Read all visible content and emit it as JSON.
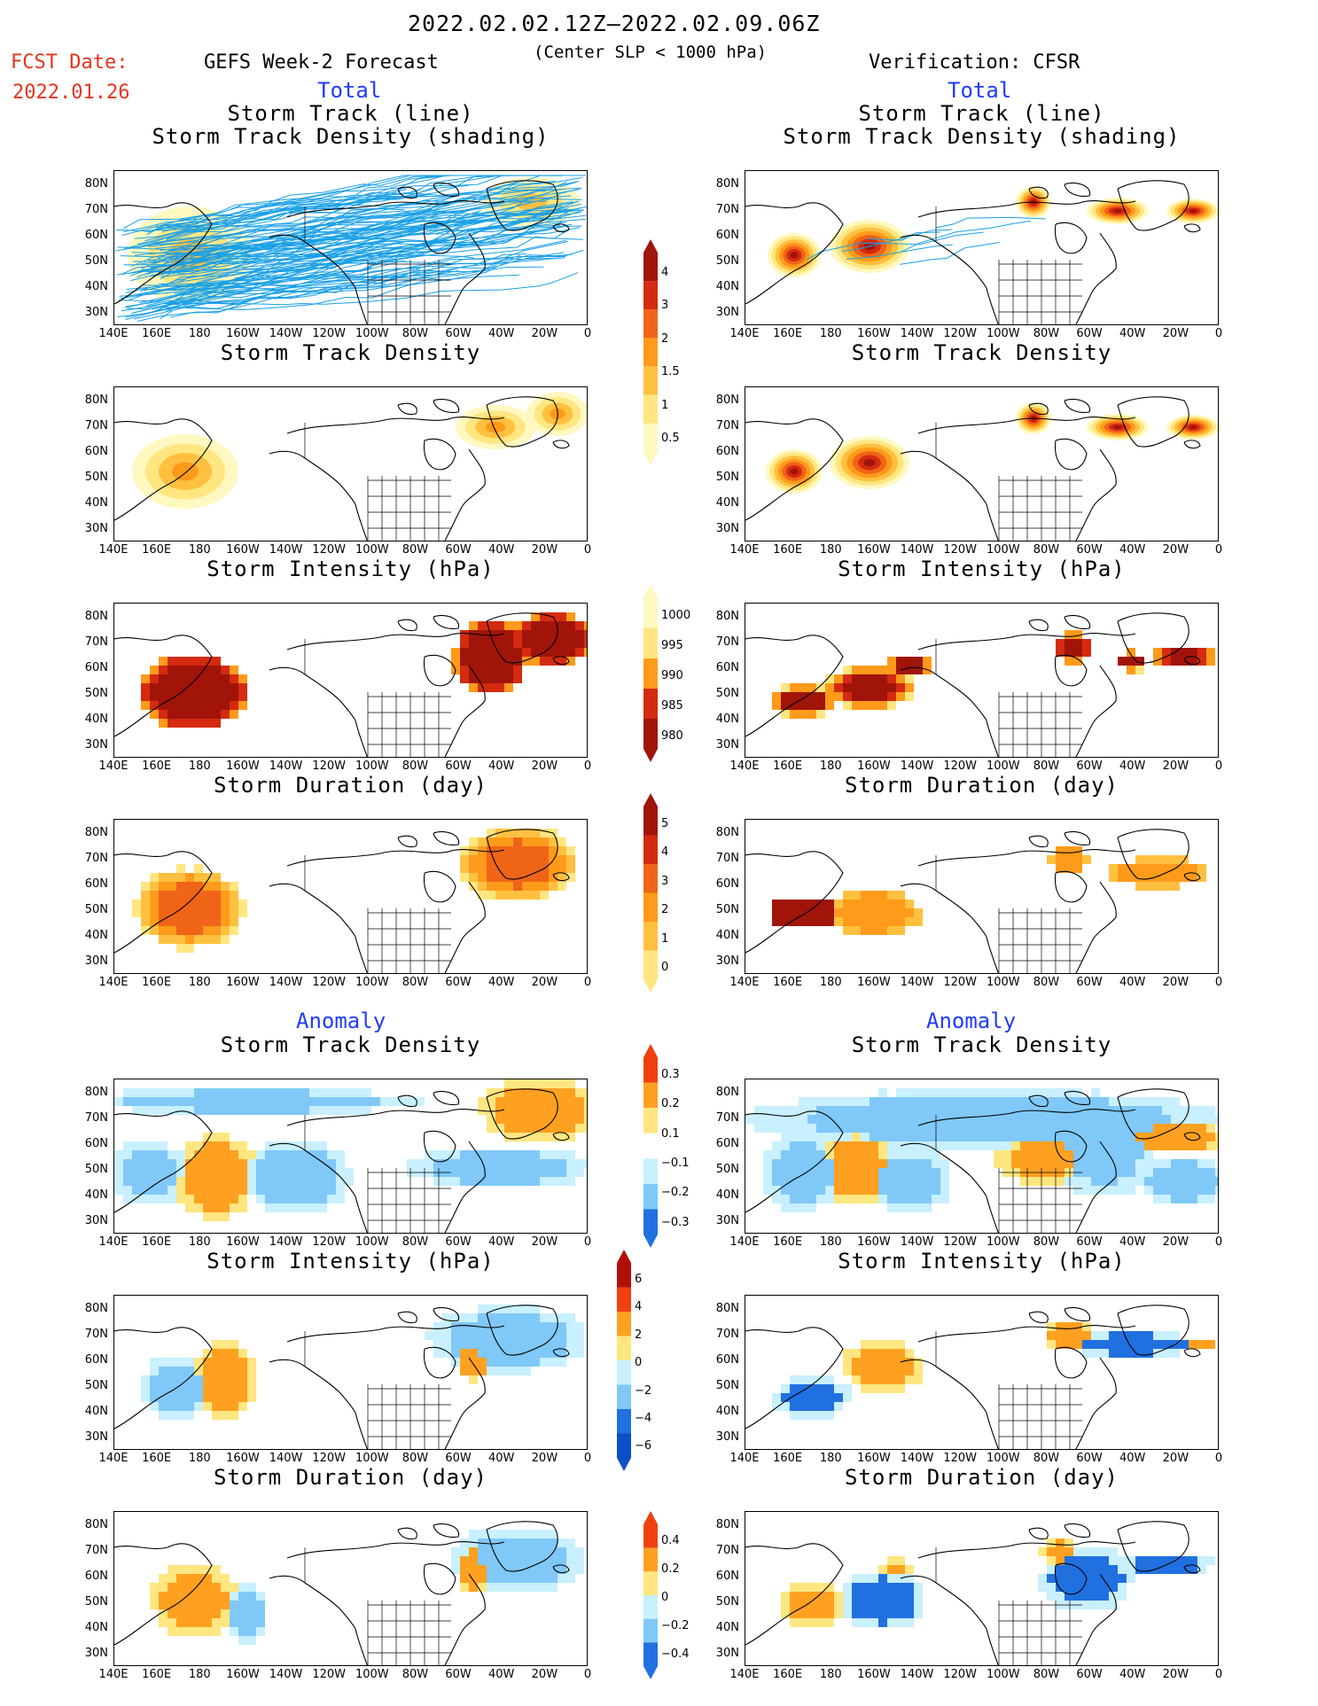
{
  "header": {
    "period": "2022.02.02.12Z–2022.02.09.06Z",
    "criterion": "(Center SLP < 1000 hPa)",
    "fcst_label": "FCST Date:",
    "fcst_date": "2022.01.26",
    "left_title": "GEFS Week-2 Forecast",
    "right_title": "Verification: CFSR",
    "total_label": "Total",
    "anomaly_label": "Anomaly"
  },
  "panel_titles": {
    "track_line": "Storm Track (line)",
    "track_shading": "Storm Track Density (shading)",
    "density": "Storm Track Density",
    "intensity": "Storm Intensity (hPa)",
    "duration": "Storm Duration (day)"
  },
  "axes": {
    "lat_labels": [
      "80N",
      "70N",
      "60N",
      "50N",
      "40N",
      "30N"
    ],
    "lon_labels": [
      "140E",
      "160E",
      "180",
      "160W",
      "140W",
      "120W",
      "100W",
      "80W",
      "60W",
      "40W",
      "20W",
      "0"
    ]
  },
  "colorbars": {
    "density_total": [
      "4",
      "3",
      "2",
      "1.5",
      "1",
      "0.5"
    ],
    "intensity_total": [
      "1000",
      "995",
      "990",
      "985",
      "980"
    ],
    "duration_total": [
      "5",
      "4",
      "3",
      "2",
      "1",
      "0"
    ],
    "density_anom": [
      "0.3",
      "0.2",
      "0.1",
      "−0.1",
      "−0.2",
      "−0.3"
    ],
    "intensity_anom": [
      "6",
      "4",
      "2",
      "0",
      "−2",
      "−4",
      "−6"
    ],
    "duration_anom": [
      "0.4",
      "0.2",
      "0",
      "−0.2",
      "−0.4"
    ]
  },
  "colors": {
    "total_scale": [
      "#fff8c0",
      "#ffe680",
      "#ffc040",
      "#ff9a1a",
      "#f06418",
      "#d42a10",
      "#a0140a"
    ],
    "anom_warm": [
      "#ffe680",
      "#ffa020",
      "#f04010",
      "#b01008"
    ],
    "anom_cool": [
      "#c8f0ff",
      "#80c8f8",
      "#2070e0",
      "#0c50c8"
    ],
    "track_line": "#1aa0e6",
    "label_red": "#e8321e",
    "label_blue": "#1f3cff"
  }
}
